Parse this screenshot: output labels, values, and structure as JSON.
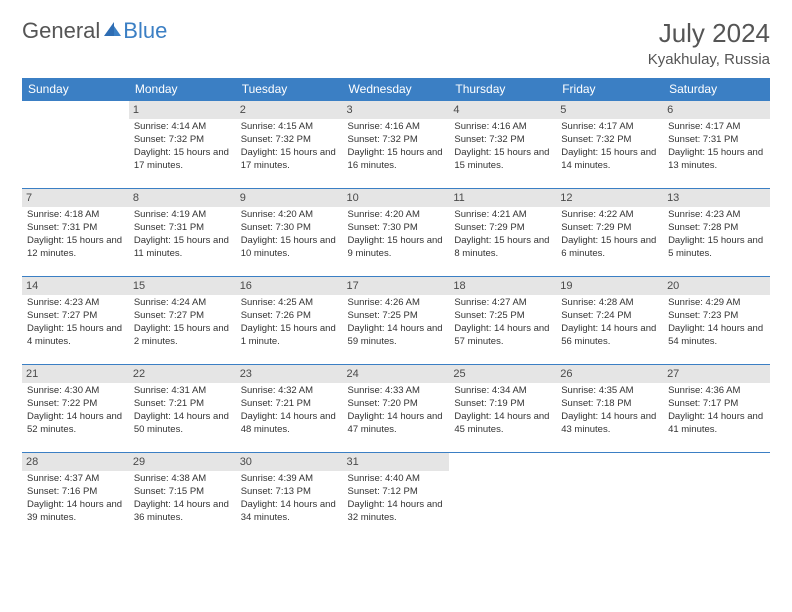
{
  "logo": {
    "part1": "General",
    "part2": "Blue"
  },
  "title": "July 2024",
  "location": "Kyakhulay, Russia",
  "header_bg": "#3b7fc4",
  "days_of_week": [
    "Sunday",
    "Monday",
    "Tuesday",
    "Wednesday",
    "Thursday",
    "Friday",
    "Saturday"
  ],
  "weeks": [
    [
      null,
      {
        "n": "1",
        "sunrise": "4:14 AM",
        "sunset": "7:32 PM",
        "daylight": "15 hours and 17 minutes."
      },
      {
        "n": "2",
        "sunrise": "4:15 AM",
        "sunset": "7:32 PM",
        "daylight": "15 hours and 17 minutes."
      },
      {
        "n": "3",
        "sunrise": "4:16 AM",
        "sunset": "7:32 PM",
        "daylight": "15 hours and 16 minutes."
      },
      {
        "n": "4",
        "sunrise": "4:16 AM",
        "sunset": "7:32 PM",
        "daylight": "15 hours and 15 minutes."
      },
      {
        "n": "5",
        "sunrise": "4:17 AM",
        "sunset": "7:32 PM",
        "daylight": "15 hours and 14 minutes."
      },
      {
        "n": "6",
        "sunrise": "4:17 AM",
        "sunset": "7:31 PM",
        "daylight": "15 hours and 13 minutes."
      }
    ],
    [
      {
        "n": "7",
        "sunrise": "4:18 AM",
        "sunset": "7:31 PM",
        "daylight": "15 hours and 12 minutes."
      },
      {
        "n": "8",
        "sunrise": "4:19 AM",
        "sunset": "7:31 PM",
        "daylight": "15 hours and 11 minutes."
      },
      {
        "n": "9",
        "sunrise": "4:20 AM",
        "sunset": "7:30 PM",
        "daylight": "15 hours and 10 minutes."
      },
      {
        "n": "10",
        "sunrise": "4:20 AM",
        "sunset": "7:30 PM",
        "daylight": "15 hours and 9 minutes."
      },
      {
        "n": "11",
        "sunrise": "4:21 AM",
        "sunset": "7:29 PM",
        "daylight": "15 hours and 8 minutes."
      },
      {
        "n": "12",
        "sunrise": "4:22 AM",
        "sunset": "7:29 PM",
        "daylight": "15 hours and 6 minutes."
      },
      {
        "n": "13",
        "sunrise": "4:23 AM",
        "sunset": "7:28 PM",
        "daylight": "15 hours and 5 minutes."
      }
    ],
    [
      {
        "n": "14",
        "sunrise": "4:23 AM",
        "sunset": "7:27 PM",
        "daylight": "15 hours and 4 minutes."
      },
      {
        "n": "15",
        "sunrise": "4:24 AM",
        "sunset": "7:27 PM",
        "daylight": "15 hours and 2 minutes."
      },
      {
        "n": "16",
        "sunrise": "4:25 AM",
        "sunset": "7:26 PM",
        "daylight": "15 hours and 1 minute."
      },
      {
        "n": "17",
        "sunrise": "4:26 AM",
        "sunset": "7:25 PM",
        "daylight": "14 hours and 59 minutes."
      },
      {
        "n": "18",
        "sunrise": "4:27 AM",
        "sunset": "7:25 PM",
        "daylight": "14 hours and 57 minutes."
      },
      {
        "n": "19",
        "sunrise": "4:28 AM",
        "sunset": "7:24 PM",
        "daylight": "14 hours and 56 minutes."
      },
      {
        "n": "20",
        "sunrise": "4:29 AM",
        "sunset": "7:23 PM",
        "daylight": "14 hours and 54 minutes."
      }
    ],
    [
      {
        "n": "21",
        "sunrise": "4:30 AM",
        "sunset": "7:22 PM",
        "daylight": "14 hours and 52 minutes."
      },
      {
        "n": "22",
        "sunrise": "4:31 AM",
        "sunset": "7:21 PM",
        "daylight": "14 hours and 50 minutes."
      },
      {
        "n": "23",
        "sunrise": "4:32 AM",
        "sunset": "7:21 PM",
        "daylight": "14 hours and 48 minutes."
      },
      {
        "n": "24",
        "sunrise": "4:33 AM",
        "sunset": "7:20 PM",
        "daylight": "14 hours and 47 minutes."
      },
      {
        "n": "25",
        "sunrise": "4:34 AM",
        "sunset": "7:19 PM",
        "daylight": "14 hours and 45 minutes."
      },
      {
        "n": "26",
        "sunrise": "4:35 AM",
        "sunset": "7:18 PM",
        "daylight": "14 hours and 43 minutes."
      },
      {
        "n": "27",
        "sunrise": "4:36 AM",
        "sunset": "7:17 PM",
        "daylight": "14 hours and 41 minutes."
      }
    ],
    [
      {
        "n": "28",
        "sunrise": "4:37 AM",
        "sunset": "7:16 PM",
        "daylight": "14 hours and 39 minutes."
      },
      {
        "n": "29",
        "sunrise": "4:38 AM",
        "sunset": "7:15 PM",
        "daylight": "14 hours and 36 minutes."
      },
      {
        "n": "30",
        "sunrise": "4:39 AM",
        "sunset": "7:13 PM",
        "daylight": "14 hours and 34 minutes."
      },
      {
        "n": "31",
        "sunrise": "4:40 AM",
        "sunset": "7:12 PM",
        "daylight": "14 hours and 32 minutes."
      },
      null,
      null,
      null
    ]
  ],
  "labels": {
    "sunrise": "Sunrise:",
    "sunset": "Sunset:",
    "daylight": "Daylight:"
  }
}
